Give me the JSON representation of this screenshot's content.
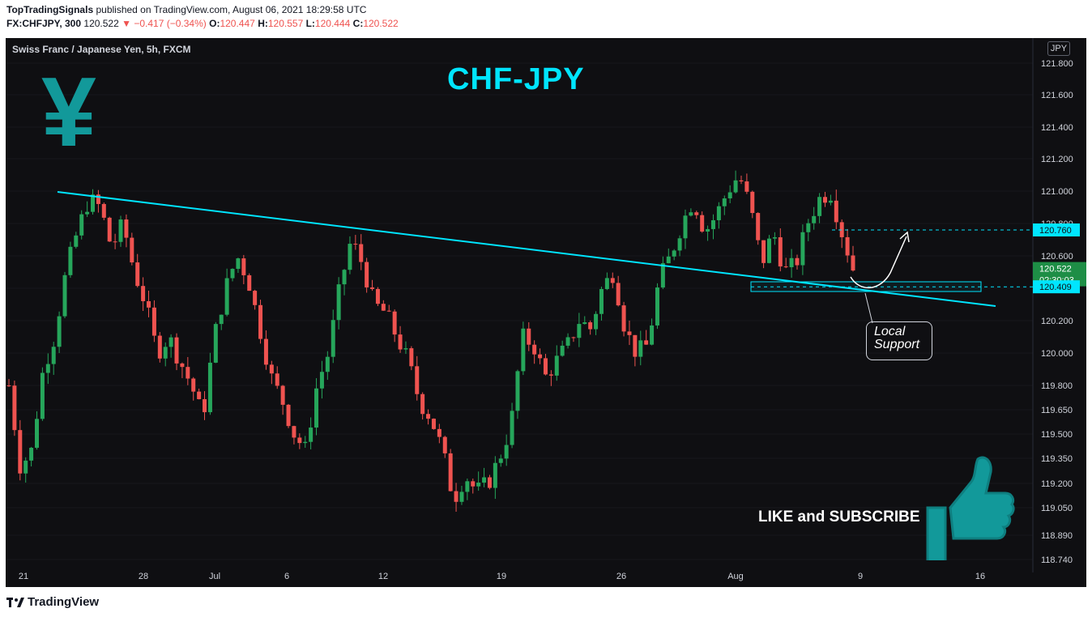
{
  "header": {
    "publisher": "TopTradingSignals",
    "published_text": "published on TradingView.com, August 06, 2021 18:29:58 UTC",
    "symbol": "FX:CHFJPY, 300",
    "last": "120.522",
    "arrow": "▼",
    "change": "−0.417 (−0.34%)",
    "o_label": "O:",
    "o_value": "120.447",
    "h_label": "H:",
    "h_value": "120.557",
    "l_label": "L:",
    "l_value": "120.444",
    "c_label": "C:",
    "c_value": "120.522"
  },
  "chart_title": "Swiss Franc / Japanese Yen, 5h, FXCM",
  "currency_badge": "JPY",
  "annotations": {
    "big_title": "CHF-JPY",
    "yen_symbol": "¥",
    "local_support_line1": "Local",
    "local_support_line2": "Support",
    "like_text": "LIKE and SUBSCRIBE"
  },
  "footer": {
    "brand": "TradingView"
  },
  "colors": {
    "background": "#0f0f12",
    "up": "#26a65b",
    "down": "#ef5350",
    "trendline": "#00e5ff",
    "accent": "#12999a"
  },
  "chart_data": {
    "type": "candlestick",
    "y_axis_ticks": [
      "121.800",
      "121.600",
      "121.400",
      "121.200",
      "121.000",
      "120.800",
      "120.600",
      "120.400",
      "120.200",
      "120.000",
      "119.800",
      "119.650",
      "119.500",
      "119.350",
      "119.200",
      "119.050",
      "118.890",
      "118.740"
    ],
    "x_axis_ticks": [
      "21",
      "28",
      "Jul",
      "6",
      "12",
      "19",
      "26",
      "Aug",
      "9",
      "16"
    ],
    "price_labels": [
      {
        "value": "120.760",
        "style": "cyan"
      },
      {
        "value": "120.522",
        "style": "green",
        "sub": "02:30:03"
      },
      {
        "value": "120.409",
        "style": "cyan"
      }
    ],
    "trendline": {
      "from": [
        "Jun 22",
        121.0
      ],
      "to": [
        "Aug 16",
        120.29
      ]
    },
    "support_zone": {
      "low": 120.38,
      "high": 120.44
    },
    "close_path": [
      119.8,
      119.3,
      119.4,
      119.9,
      120.1,
      120.5,
      120.75,
      120.95,
      120.9,
      120.65,
      120.8,
      120.5,
      120.3,
      120.0,
      120.1,
      119.95,
      119.8,
      119.6,
      120.1,
      120.4,
      120.6,
      120.45,
      120.15,
      119.85,
      119.7,
      119.5,
      119.4,
      119.8,
      120.0,
      120.4,
      120.7,
      120.55,
      120.3,
      120.25,
      120.1,
      119.95,
      119.7,
      119.6,
      119.4,
      119.1,
      119.25,
      119.15,
      119.2,
      119.35,
      119.55,
      120.1,
      120.05,
      119.85,
      119.95,
      120.05,
      120.2,
      120.15,
      120.4,
      120.5,
      120.15,
      120.0,
      120.05,
      120.45,
      120.6,
      120.8,
      120.95,
      120.75,
      120.85,
      121.0,
      121.1,
      120.9,
      120.55,
      120.75,
      120.5,
      120.55,
      120.8,
      120.95,
      121.0,
      120.75,
      120.522
    ]
  }
}
